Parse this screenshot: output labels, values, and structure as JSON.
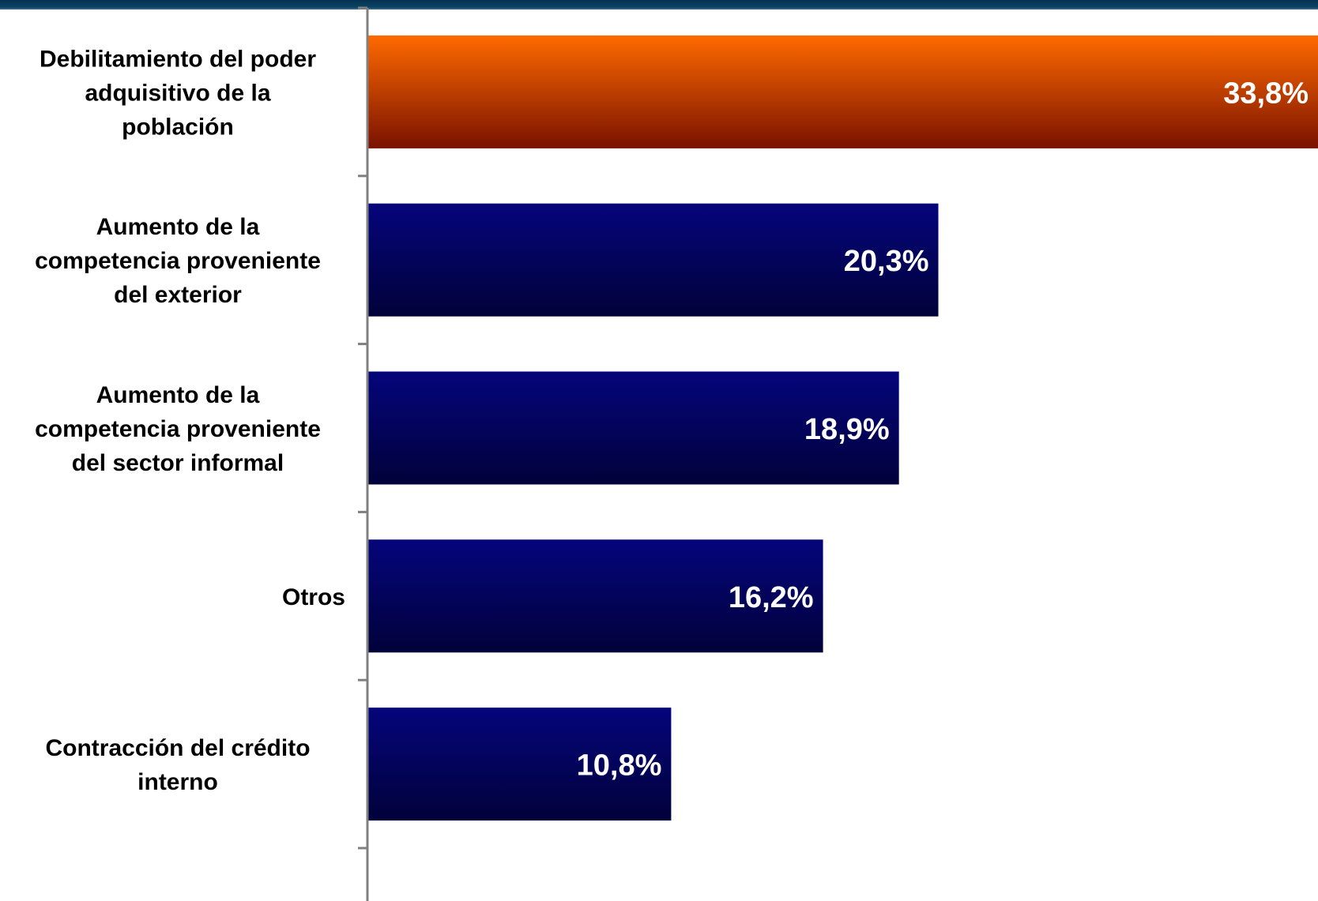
{
  "colors": {
    "top_band": "#05314f",
    "highlight_bar_top": "#ff6a00",
    "highlight_bar_bottom": "#7a1200",
    "bar_top": "#05057c",
    "bar_bottom": "#01013a",
    "axis": "#808080"
  },
  "chart_data": {
    "type": "bar",
    "orientation": "horizontal",
    "title": "",
    "xlabel": "",
    "ylabel": "",
    "categories": [
      [
        "Debilitamiento del poder",
        "adquisitivo de la",
        "población"
      ],
      [
        "Aumento de la",
        "competencia proveniente",
        "del exterior"
      ],
      [
        "Aumento de la",
        "competencia proveniente",
        "del sector informal"
      ],
      [
        "Otros"
      ],
      [
        "Contracción del crédito",
        "interno"
      ]
    ],
    "values": [
      33.8,
      20.3,
      18.9,
      16.2,
      10.8
    ],
    "value_labels": [
      "33,8%",
      "20,3%",
      "18,9%",
      "16,2%",
      "10,8%"
    ],
    "highlighted_index": 0,
    "xlim": [
      0,
      33.8
    ],
    "grid": false,
    "legend": "none"
  }
}
